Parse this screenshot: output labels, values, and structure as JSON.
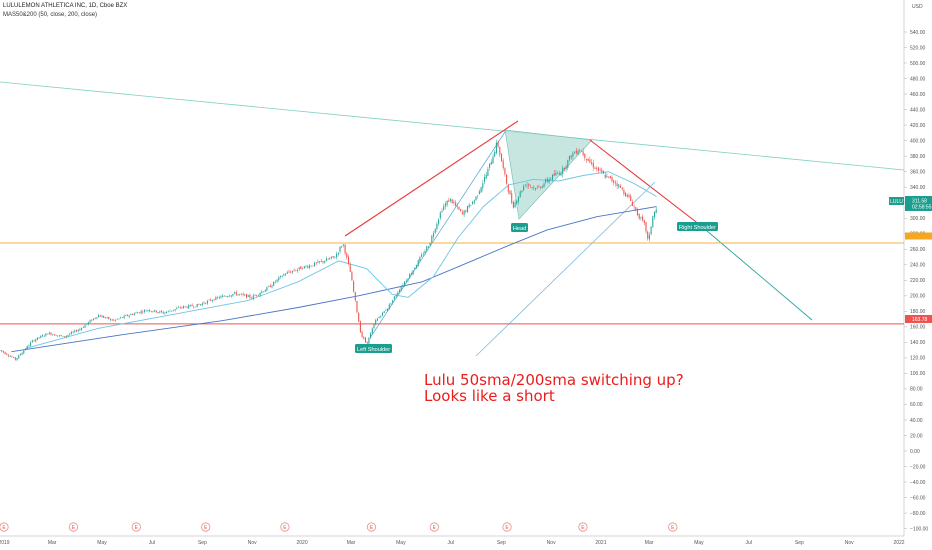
{
  "header": {
    "symbol_line": "LULULEMON ATHLETICA INC, 1D, Cboe BZX",
    "indicator_line": "MAS50&200 (50, close, 200, close)"
  },
  "annotation": {
    "line1": "Lulu 50sma/200sma switching up?",
    "line2": "Looks like a short"
  },
  "chart_data": {
    "type": "line",
    "title": "LULULEMON ATHLETICA INC, 1D, Cboe BZX",
    "currency": "USD",
    "ylim": [
      -100,
      560
    ],
    "y_ticks": [
      -100,
      -80,
      -60,
      -40,
      -20,
      0,
      20,
      40,
      60,
      80,
      100,
      120,
      140,
      160,
      180,
      200,
      220,
      240,
      260,
      280,
      300,
      320,
      340,
      360,
      380,
      400,
      420,
      440,
      460,
      480,
      500,
      520,
      540
    ],
    "y_tick_labels": [
      "−100.00",
      "−80.00",
      "−60.00",
      "−40.00",
      "−20.00",
      "0.00",
      "20.00",
      "40.00",
      "60.00",
      "80.00",
      "100.00",
      "120.00",
      "140.00",
      "160.00",
      "180.00",
      "200.00",
      "220.00",
      "240.00",
      "260.00",
      "280.00",
      "300.00",
      "320.00",
      "340.00",
      "360.00",
      "380.00",
      "400.00",
      "420.00",
      "440.00",
      "460.00",
      "480.00",
      "500.00",
      "520.00",
      "540.00"
    ],
    "x_ticks": [
      "2019",
      "Mar",
      "May",
      "Jul",
      "Sep",
      "Nov",
      "2020",
      "Mar",
      "May",
      "Jul",
      "Sep",
      "Nov",
      "2021",
      "Mar",
      "May",
      "Jul",
      "Sep",
      "Nov",
      "2022"
    ],
    "price": [
      [
        "2019-01-01",
        130
      ],
      [
        "2019-01-20",
        118
      ],
      [
        "2019-02-10",
        142
      ],
      [
        "2019-03-01",
        152
      ],
      [
        "2019-03-20",
        147
      ],
      [
        "2019-04-10",
        158
      ],
      [
        "2019-05-01",
        175
      ],
      [
        "2019-05-20",
        168
      ],
      [
        "2019-06-10",
        176
      ],
      [
        "2019-07-01",
        182
      ],
      [
        "2019-07-20",
        178
      ],
      [
        "2019-08-10",
        185
      ],
      [
        "2019-09-01",
        188
      ],
      [
        "2019-09-20",
        196
      ],
      [
        "2019-10-15",
        203
      ],
      [
        "2019-11-05",
        198
      ],
      [
        "2019-11-25",
        210
      ],
      [
        "2019-12-15",
        228
      ],
      [
        "2020-01-05",
        236
      ],
      [
        "2020-01-25",
        242
      ],
      [
        "2020-02-15",
        250
      ],
      [
        "2020-02-25",
        268
      ],
      [
        "2020-03-05",
        230
      ],
      [
        "2020-03-18",
        150
      ],
      [
        "2020-03-25",
        138
      ],
      [
        "2020-04-05",
        168
      ],
      [
        "2020-04-20",
        185
      ],
      [
        "2020-05-05",
        210
      ],
      [
        "2020-05-20",
        232
      ],
      [
        "2020-06-10",
        268
      ],
      [
        "2020-06-25",
        312
      ],
      [
        "2020-07-05",
        325
      ],
      [
        "2020-07-20",
        305
      ],
      [
        "2020-08-05",
        325
      ],
      [
        "2020-08-20",
        360
      ],
      [
        "2020-09-01",
        398
      ],
      [
        "2020-09-10",
        355
      ],
      [
        "2020-09-20",
        315
      ],
      [
        "2020-10-05",
        345
      ],
      [
        "2020-10-20",
        338
      ],
      [
        "2020-11-05",
        352
      ],
      [
        "2020-11-20",
        362
      ],
      [
        "2020-12-01",
        382
      ],
      [
        "2020-12-10",
        390
      ],
      [
        "2020-12-25",
        370
      ],
      [
        "2021-01-10",
        355
      ],
      [
        "2021-01-25",
        345
      ],
      [
        "2021-02-10",
        325
      ],
      [
        "2021-02-20",
        305
      ],
      [
        "2021-03-01",
        290
      ],
      [
        "2021-03-05",
        268
      ],
      [
        "2021-03-10",
        302
      ],
      [
        "2021-03-15",
        312
      ]
    ],
    "sma50": [
      [
        "2019-02-01",
        132
      ],
      [
        "2019-05-01",
        158
      ],
      [
        "2019-08-01",
        176
      ],
      [
        "2019-11-01",
        194
      ],
      [
        "2020-01-01",
        218
      ],
      [
        "2020-02-20",
        245
      ],
      [
        "2020-03-25",
        235
      ],
      [
        "2020-04-25",
        202
      ],
      [
        "2020-05-15",
        198
      ],
      [
        "2020-06-15",
        225
      ],
      [
        "2020-07-15",
        275
      ],
      [
        "2020-08-15",
        315
      ],
      [
        "2020-09-15",
        343
      ],
      [
        "2020-10-15",
        350
      ],
      [
        "2020-11-15",
        348
      ],
      [
        "2020-12-15",
        355
      ],
      [
        "2021-01-15",
        360
      ],
      [
        "2021-02-15",
        345
      ],
      [
        "2021-03-15",
        328
      ]
    ],
    "sma200": [
      [
        "2019-01-15",
        128
      ],
      [
        "2019-06-01",
        150
      ],
      [
        "2019-10-01",
        168
      ],
      [
        "2020-01-01",
        185
      ],
      [
        "2020-03-15",
        200
      ],
      [
        "2020-06-01",
        218
      ],
      [
        "2020-08-01",
        245
      ],
      [
        "2020-09-15",
        265
      ],
      [
        "2020-11-01",
        285
      ],
      [
        "2021-01-01",
        302
      ],
      [
        "2021-03-15",
        315
      ]
    ],
    "last_price": 311.58,
    "last_price_tag": "LULU",
    "countdown": "02:58:55",
    "horizontal_levels": [
      {
        "value": 163.78,
        "label": "163.78",
        "color": "#ef5350"
      },
      {
        "value": 268,
        "color": "#f5b041"
      }
    ],
    "annotations": [
      "Left Shoulder",
      "Head",
      "Right Shoulder"
    ],
    "earnings_marker": "E",
    "earnings_count": 10
  }
}
